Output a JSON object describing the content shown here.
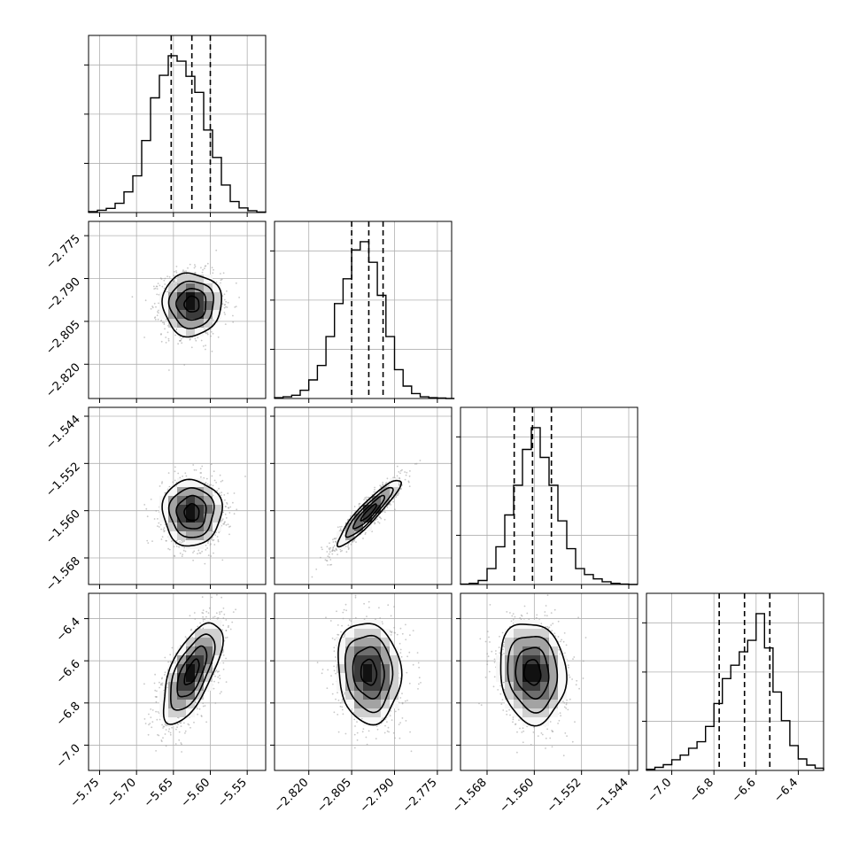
{
  "figure": {
    "background": "#ffffff",
    "panel_border": "#000000",
    "grid_color": "#b0b0b0",
    "hist_color": "#000000",
    "scatter_color": "#9a9a9a",
    "contour_color": "#000000",
    "density_colors": [
      "#f7f7f7",
      "#d0d0d0",
      "#a3a3a3",
      "#6e6e6e",
      "#3c3c3c",
      "#111111"
    ]
  },
  "chart_data": {
    "type": "corner",
    "grid": true,
    "legend": "none",
    "parameters": [
      {
        "index": 0,
        "range": [
          -5.765,
          -5.525
        ],
        "ticks": [
          -5.75,
          -5.7,
          -5.65,
          -5.6,
          -5.55
        ],
        "tick_labels": [
          "−5.75",
          "−5.70",
          "−5.65",
          "−5.60",
          "−5.55"
        ],
        "quantiles": [
          -5.653,
          -5.625,
          -5.6
        ],
        "median": -5.625,
        "std": 0.02,
        "hist_bins": [
          -5.765,
          -5.753,
          -5.741,
          -5.729,
          -5.717,
          -5.705,
          -5.693,
          -5.681,
          -5.669,
          -5.657,
          -5.645,
          -5.633,
          -5.621,
          -5.609,
          -5.597,
          -5.585,
          -5.573,
          -5.561,
          -5.549,
          -5.537,
          -5.525
        ],
        "hist_counts": [
          2,
          5,
          9,
          20,
          45,
          80,
          157,
          250,
          299,
          342,
          330,
          297,
          262,
          180,
          120,
          60,
          24,
          10,
          4,
          1
        ]
      },
      {
        "index": 1,
        "range": [
          -2.832,
          -2.77
        ],
        "ticks": [
          -2.82,
          -2.805,
          -2.79,
          -2.775
        ],
        "tick_labels": [
          "−2.820",
          "−2.805",
          "−2.790",
          "−2.775"
        ],
        "quantiles": [
          -2.805,
          -2.799,
          -2.794
        ],
        "median": -2.799,
        "std": 0.0055,
        "hist_bins": [
          -2.832,
          -2.829,
          -2.826,
          -2.823,
          -2.82,
          -2.817,
          -2.814,
          -2.811,
          -2.808,
          -2.805,
          -2.802,
          -2.799,
          -2.796,
          -2.793,
          -2.79,
          -2.787,
          -2.784,
          -2.781,
          -2.778,
          -2.775,
          -2.772,
          -2.769
        ],
        "hist_counts": [
          2,
          4,
          8,
          20,
          45,
          80,
          150,
          230,
          290,
          360,
          380,
          330,
          250,
          150,
          70,
          30,
          12,
          4,
          2,
          1,
          0
        ]
      },
      {
        "index": 2,
        "range": [
          -1.5725,
          -1.5425
        ],
        "ticks": [
          -1.568,
          -1.56,
          -1.552,
          -1.544
        ],
        "tick_labels": [
          "−1.568",
          "−1.560",
          "−1.552",
          "−1.544"
        ],
        "quantiles": [
          -1.5634,
          -1.5603,
          -1.5571
        ],
        "median": -1.5603,
        "std": 0.0028,
        "hist_bins": [
          -1.5725,
          -1.571,
          -1.5695,
          -1.568,
          -1.5665,
          -1.565,
          -1.5635,
          -1.562,
          -1.5605,
          -1.559,
          -1.5575,
          -1.556,
          -1.5545,
          -1.553,
          -1.5515,
          -1.55,
          -1.5485,
          -1.547,
          -1.5455,
          -1.544,
          -1.5425
        ],
        "hist_counts": [
          1,
          3,
          10,
          40,
          95,
          175,
          250,
          340,
          395,
          320,
          250,
          160,
          90,
          40,
          25,
          14,
          7,
          3,
          1,
          0
        ]
      },
      {
        "index": 3,
        "range": [
          -7.12,
          -6.28
        ],
        "ticks": [
          -7.0,
          -6.8,
          -6.6,
          -6.4
        ],
        "tick_labels": [
          "−7.0",
          "−6.8",
          "−6.6",
          "−6.4"
        ],
        "quantiles": [
          -6.775,
          -6.655,
          -6.535
        ],
        "median": -6.655,
        "std": 0.12,
        "hist_bins": [
          -7.12,
          -7.08,
          -7.04,
          -7.0,
          -6.96,
          -6.92,
          -6.88,
          -6.84,
          -6.8,
          -6.76,
          -6.72,
          -6.68,
          -6.64,
          -6.6,
          -6.56,
          -6.52,
          -6.48,
          -6.44,
          -6.4,
          -6.36,
          -6.32,
          -6.28
        ],
        "hist_counts": [
          3,
          8,
          15,
          28,
          40,
          58,
          75,
          115,
          175,
          240,
          275,
          310,
          340,
          410,
          320,
          205,
          130,
          65,
          30,
          14,
          6
        ]
      }
    ],
    "correlations": [
      [
        1.0,
        0.0,
        0.0,
        0.65
      ],
      [
        0.0,
        1.0,
        0.92,
        -0.1
      ],
      [
        0.0,
        0.92,
        1.0,
        -0.1
      ],
      [
        0.65,
        -0.1,
        -0.1,
        1.0
      ]
    ],
    "contour_levels_sigma": [
      0.5,
      1.0,
      1.5,
      2.0
    ]
  }
}
